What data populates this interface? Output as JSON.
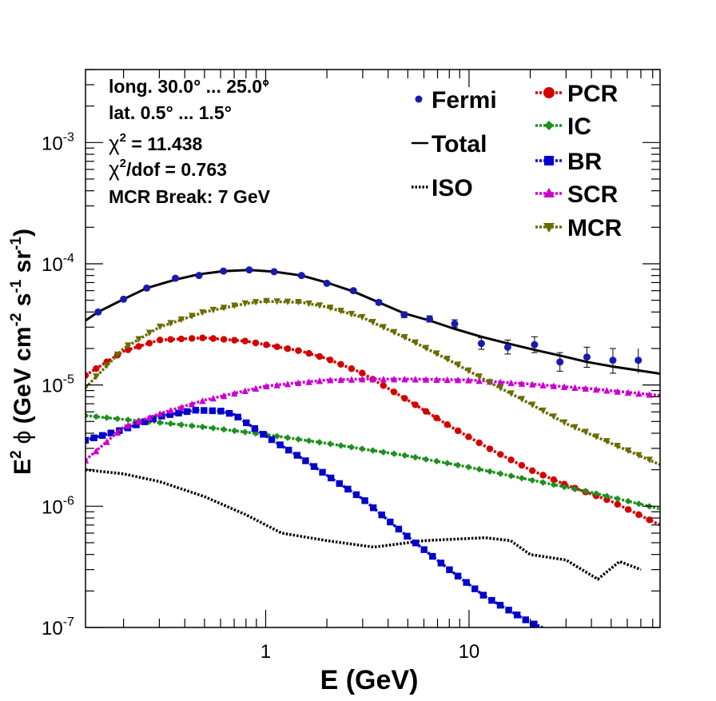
{
  "chart_data": {
    "type": "line",
    "xlabel": "E (GeV)",
    "ylabel_parts": {
      "e": "E",
      "e_sup": "2",
      "phi": "ϕ",
      "open": " (GeV cm",
      "cm_sup": "-2",
      "s": " s",
      "s_sup": "-1",
      "sr": " sr",
      "sr_sup": "-1",
      "close": ")"
    },
    "x_scale": "log",
    "y_scale": "log",
    "xlim": [
      0.13,
      87
    ],
    "ylim": [
      1e-07,
      0.004
    ],
    "x_ticks": [
      {
        "value": 1,
        "label": "1"
      },
      {
        "value": 10,
        "label": "10"
      }
    ],
    "y_ticks": [
      {
        "value": 1e-07,
        "base": "10",
        "exp": "-7"
      },
      {
        "value": 1e-06,
        "base": "10",
        "exp": "-6"
      },
      {
        "value": 1e-05,
        "base": "10",
        "exp": "-5"
      },
      {
        "value": 0.0001,
        "base": "10",
        "exp": "-4"
      },
      {
        "value": 0.001,
        "base": "10",
        "exp": "-3"
      }
    ],
    "info_text": {
      "line1": "long. 30.0° ... 25.0°",
      "line2": "lat. 0.5° ... 1.5°",
      "chi_sym": "χ",
      "chi_sup": "2",
      "line3_rest": " = 11.438",
      "line4_rest": "/dof = 0.763",
      "line5": "MCR Break:  7 GeV"
    },
    "legend": [
      {
        "label": "Fermi",
        "marker": "dot",
        "color": "#1a1ab0"
      },
      {
        "label": "Total",
        "marker": "line",
        "color": "#000000"
      },
      {
        "label": "ISO",
        "marker": "dotted",
        "color": "#000000"
      },
      {
        "label": "PCR",
        "marker": "circle",
        "color": "#d40000"
      },
      {
        "label": "IC",
        "marker": "diamond",
        "color": "#1f8f1f"
      },
      {
        "label": "BR",
        "marker": "square",
        "color": "#0000cc"
      },
      {
        "label": "SCR",
        "marker": "triangle-up",
        "color": "#cc00cc"
      },
      {
        "label": "MCR",
        "marker": "triangle-down",
        "color": "#6b6b00"
      }
    ],
    "fermi": {
      "name": "Fermi",
      "color": "#1a1ab0",
      "x": [
        0.15,
        0.2,
        0.26,
        0.36,
        0.47,
        0.62,
        0.83,
        1.1,
        1.5,
        2.0,
        2.7,
        3.6,
        4.8,
        6.4,
        8.5,
        11.5,
        15.5,
        21,
        28,
        38,
        51,
        68
      ],
      "y": [
        4e-05,
        5.1e-05,
        6.3e-05,
        7.6e-05,
        8e-05,
        8.7e-05,
        8.9e-05,
        8.6e-05,
        8e-05,
        6.9e-05,
        6e-05,
        4.8e-05,
        3.8e-05,
        3.5e-05,
        3.2e-05,
        2.2e-05,
        2.05e-05,
        2.15e-05,
        1.55e-05,
        1.7e-05,
        1.6e-05,
        null
      ],
      "err_up": [
        1e-06,
        1.2e-06,
        1.5e-06,
        1.7e-06,
        1.8e-06,
        1.9e-06,
        2e-06,
        2e-06,
        2e-06,
        2e-06,
        2e-06,
        2e-06,
        2e-06,
        2.2e-06,
        2.5e-06,
        2.5e-06,
        3e-06,
        3.5e-06,
        3e-06,
        3.5e-06,
        4e-06,
        null
      ],
      "err_dn": [
        1e-06,
        1.2e-06,
        1.5e-06,
        1.7e-06,
        1.8e-06,
        1.9e-06,
        2e-06,
        2e-06,
        2e-06,
        2e-06,
        2e-06,
        2e-06,
        2e-06,
        2e-06,
        2.2e-06,
        2.3e-06,
        2.5e-06,
        3e-06,
        2.5e-06,
        3e-06,
        3.5e-06,
        null
      ]
    },
    "series": [
      {
        "name": "Total",
        "style": "solid",
        "color": "#000000",
        "marker": "none",
        "x": [
          0.13,
          0.15,
          0.2,
          0.26,
          0.36,
          0.47,
          0.62,
          0.83,
          1.1,
          1.5,
          2.0,
          2.7,
          3.6,
          4.8,
          6.4,
          8.5,
          11.5,
          15.5,
          21,
          28,
          38,
          51,
          68,
          87
        ],
        "y": [
          3.4e-05,
          4e-05,
          5.1e-05,
          6.3e-05,
          7.4e-05,
          8.2e-05,
          8.7e-05,
          8.9e-05,
          8.6e-05,
          8e-05,
          7e-05,
          5.9e-05,
          4.8e-05,
          3.9e-05,
          3.4e-05,
          2.9e-05,
          2.5e-05,
          2.2e-05,
          1.95e-05,
          1.75e-05,
          1.55e-05,
          1.42e-05,
          1.32e-05,
          1.24e-05
        ]
      },
      {
        "name": "ISO",
        "style": "dotted",
        "color": "#000000",
        "marker": "none",
        "x": [
          0.13,
          0.2,
          0.3,
          0.5,
          0.8,
          1.2,
          2.0,
          3.4,
          6.0,
          12,
          16,
          20,
          30,
          43,
          55,
          70
        ],
        "y": [
          2e-06,
          1.85e-06,
          1.6e-06,
          1.2e-06,
          8.5e-07,
          6e-07,
          5.2e-07,
          4.6e-07,
          5.2e-07,
          5.5e-07,
          5.2e-07,
          4e-07,
          3.6e-07,
          2.5e-07,
          3.5e-07,
          3e-07
        ]
      },
      {
        "name": "PCR",
        "style": "dashed",
        "color": "#d40000",
        "marker": "circle",
        "x": [
          0.13,
          0.2,
          0.3,
          0.5,
          0.8,
          1.0,
          1.5,
          2.0,
          3.0,
          5.0,
          8.0,
          13,
          20,
          30,
          50,
          87
        ],
        "y": [
          1.2e-05,
          1.9e-05,
          2.35e-05,
          2.45e-05,
          2.3e-05,
          2.15e-05,
          1.9e-05,
          1.65e-05,
          1.25e-05,
          7.5e-06,
          4.6e-06,
          2.9e-06,
          2e-06,
          1.5e-06,
          1.1e-06,
          7e-07
        ]
      },
      {
        "name": "IC",
        "style": "dashed",
        "color": "#1f8f1f",
        "marker": "diamond",
        "x": [
          0.13,
          0.2,
          0.3,
          0.5,
          1.0,
          2.0,
          5.0,
          10,
          20,
          40,
          87
        ],
        "y": [
          5.6e-06,
          5.2e-06,
          4.9e-06,
          4.5e-06,
          3.9e-06,
          3.3e-06,
          2.6e-06,
          2.1e-06,
          1.65e-06,
          1.3e-06,
          9.5e-07
        ]
      },
      {
        "name": "BR",
        "style": "dashed",
        "color": "#0000cc",
        "marker": "square",
        "x": [
          0.13,
          0.2,
          0.3,
          0.45,
          0.6,
          0.7,
          0.8,
          1.0,
          1.5,
          2.0,
          3.0,
          5.0,
          8.0,
          12,
          20,
          23
        ],
        "y": [
          3.5e-06,
          4.3e-06,
          5.5e-06,
          6.2e-06,
          6.1e-06,
          5.7e-06,
          4.9e-06,
          3.8e-06,
          2.5e-06,
          1.8e-06,
          1.15e-06,
          5.6e-07,
          3e-07,
          1.8e-07,
          1.1e-07,
          1e-07
        ]
      },
      {
        "name": "SCR",
        "style": "dashed",
        "color": "#cc00cc",
        "marker": "triangle-up",
        "x": [
          0.13,
          0.2,
          0.3,
          0.5,
          0.8,
          1.0,
          1.5,
          2.0,
          3.0,
          5.0,
          10,
          20,
          40,
          87
        ],
        "y": [
          2.4e-06,
          4.5e-06,
          5.8e-06,
          7.5e-06,
          9e-06,
          9.8e-06,
          1.05e-05,
          1.1e-05,
          1.12e-05,
          1.12e-05,
          1.1e-05,
          1.02e-05,
          9.3e-06,
          8.2e-06
        ]
      },
      {
        "name": "MCR",
        "style": "dashed",
        "color": "#6b6b00",
        "marker": "triangle-down",
        "x": [
          0.13,
          0.2,
          0.3,
          0.5,
          0.8,
          1.0,
          1.5,
          2.0,
          3.0,
          5.0,
          8.0,
          12,
          20,
          30,
          50,
          87
        ],
        "y": [
          9.5e-06,
          2e-05,
          3e-05,
          4e-05,
          4.7e-05,
          4.9e-05,
          4.8e-05,
          4.4e-05,
          3.6e-05,
          2.4e-05,
          1.6e-05,
          1.1e-05,
          7e-06,
          4.8e-06,
          3.3e-06,
          2.2e-06
        ]
      }
    ]
  }
}
